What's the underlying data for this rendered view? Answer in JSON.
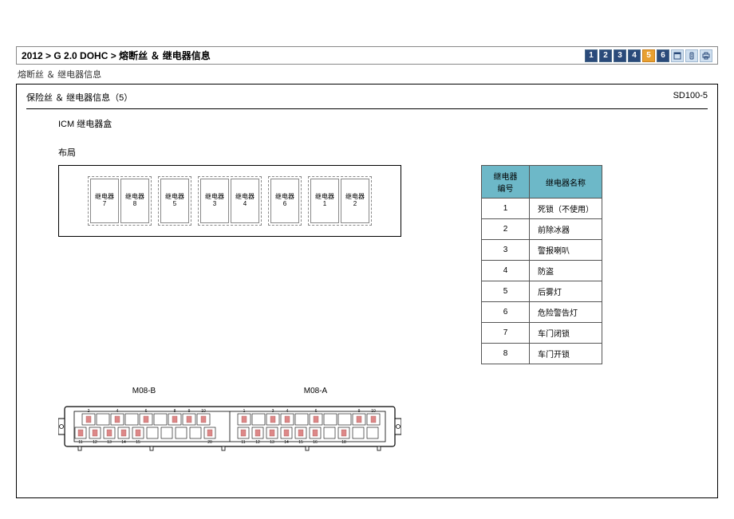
{
  "breadcrumb": "2012 > G 2.0 DOHC > 熔断丝 ＆ 继电器信息",
  "toolbar": {
    "pages": [
      "1",
      "2",
      "3",
      "4",
      "5",
      "6"
    ],
    "active_page": "5"
  },
  "subtitle": "熔断丝 ＆ 继电器信息",
  "frame": {
    "title": "保险丝 ＆ 继电器信息（5）",
    "doc_id": "SD100-5"
  },
  "section_title": "ICM 继电器盒",
  "layout_label": "布局",
  "relay_label_prefix": "继电器",
  "relay_groups": [
    {
      "type": "pair",
      "slots": [
        "7",
        "8"
      ]
    },
    {
      "type": "single",
      "slots": [
        "5"
      ]
    },
    {
      "type": "pair",
      "slots": [
        "3",
        "4"
      ]
    },
    {
      "type": "single",
      "slots": [
        "6"
      ]
    },
    {
      "type": "pair",
      "slots": [
        "1",
        "2"
      ]
    }
  ],
  "connector_labels": {
    "left": "M08-B",
    "right": "M08-A"
  },
  "pin_numbers_b_top": [
    "2",
    "",
    "4",
    "",
    "6",
    "",
    "8",
    "9",
    "10"
  ],
  "pin_numbers_b_bot": [
    "11",
    "12",
    "13",
    "14",
    "15",
    "",
    "",
    "",
    "",
    "20"
  ],
  "pin_numbers_a_top": [
    "1",
    "",
    "3",
    "4",
    "",
    "6",
    "",
    "",
    "9",
    "10"
  ],
  "pin_numbers_a_bot": [
    "11",
    "12",
    "13",
    "14",
    "15",
    "16",
    "",
    "18",
    "",
    ""
  ],
  "table": {
    "headers": [
      "继电器编号",
      "继电器名称"
    ],
    "rows": [
      [
        "1",
        "死锁（不使用）"
      ],
      [
        "2",
        "前除冰器"
      ],
      [
        "3",
        "警报喇叭"
      ],
      [
        "4",
        "防盗"
      ],
      [
        "5",
        "后雾灯"
      ],
      [
        "6",
        "危险警告灯"
      ],
      [
        "7",
        "车门闭锁"
      ],
      [
        "8",
        "车门开锁"
      ]
    ]
  },
  "colors": {
    "table_header_bg": "#6db8c8",
    "nav_bg": "#2a4a7a",
    "nav_active": "#e8a030",
    "border": "#000000"
  }
}
